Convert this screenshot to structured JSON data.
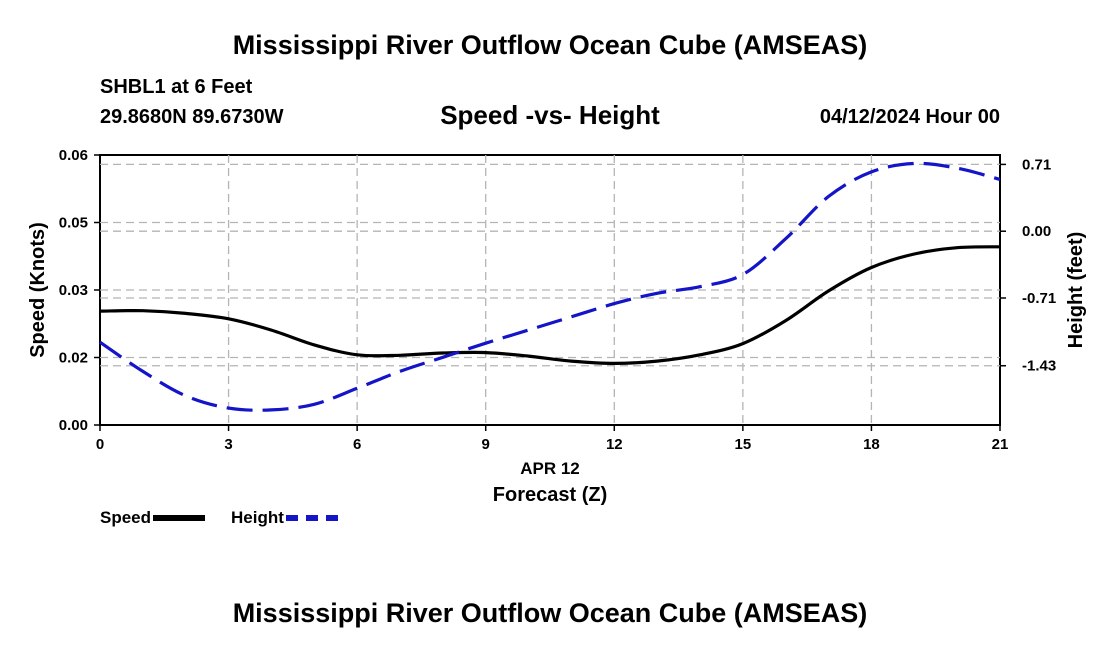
{
  "header": {
    "title": "Mississippi River Outflow Ocean Cube (AMSEAS)",
    "station": "SHBL1 at 6 Feet",
    "coords": "29.8680N  89.6730W",
    "subtitle": "Speed -vs- Height",
    "datetime": "04/12/2024 Hour 00"
  },
  "footer": {
    "title": "Mississippi River Outflow Ocean Cube (AMSEAS)"
  },
  "legend": {
    "speed": "Speed",
    "height": "Height"
  },
  "chart_data": {
    "type": "line",
    "title": "Speed -vs- Height",
    "xlabel": "Forecast (Z)",
    "xlabel_date": "APR 12",
    "ylabel": "Speed (Knots)",
    "y2label": "Height (feet)",
    "xlim": [
      0,
      21
    ],
    "ylim": [
      0,
      0.06
    ],
    "y2lim": [
      -2.06,
      0.81
    ],
    "x_ticks": [
      "0",
      "3",
      "6",
      "9",
      "12",
      "15",
      "18",
      "21"
    ],
    "y_ticks": [
      {
        "value": 0.0,
        "label": "0.00"
      },
      {
        "value": 0.015,
        "label": "0.02"
      },
      {
        "value": 0.03,
        "label": "0.03"
      },
      {
        "value": 0.045,
        "label": "0.05"
      },
      {
        "value": 0.06,
        "label": "0.06"
      }
    ],
    "y2_ticks": [
      {
        "value": 0.71,
        "label": "0.71"
      },
      {
        "value": 0.0,
        "label": "0.00"
      },
      {
        "value": -0.71,
        "label": "-0.71"
      },
      {
        "value": -1.43,
        "label": "-1.43"
      }
    ],
    "grid": true,
    "series": [
      {
        "name": "Speed",
        "axis": "left",
        "color": "#000000",
        "style": "solid",
        "x": [
          0,
          1,
          2,
          3,
          4,
          5,
          6,
          7,
          8,
          9,
          10,
          11,
          12,
          13,
          14,
          15,
          16,
          17,
          18,
          19,
          20,
          21
        ],
        "values": [
          0.0253,
          0.0254,
          0.0248,
          0.0236,
          0.0211,
          0.0178,
          0.0156,
          0.0155,
          0.016,
          0.0161,
          0.0153,
          0.0142,
          0.0137,
          0.0142,
          0.0156,
          0.0181,
          0.0232,
          0.0298,
          0.035,
          0.038,
          0.0394,
          0.0396
        ]
      },
      {
        "name": "Height",
        "axis": "right",
        "color": "#1414c8",
        "style": "dashed",
        "x": [
          0,
          1,
          2,
          3,
          4,
          5,
          6,
          7,
          8,
          9,
          10,
          11,
          12,
          13,
          14,
          15,
          16,
          17,
          18,
          19,
          20,
          21
        ],
        "values": [
          -1.18,
          -1.49,
          -1.75,
          -1.88,
          -1.9,
          -1.84,
          -1.67,
          -1.49,
          -1.34,
          -1.19,
          -1.05,
          -0.91,
          -0.77,
          -0.66,
          -0.59,
          -0.46,
          -0.08,
          0.37,
          0.63,
          0.72,
          0.67,
          0.55
        ]
      }
    ]
  }
}
